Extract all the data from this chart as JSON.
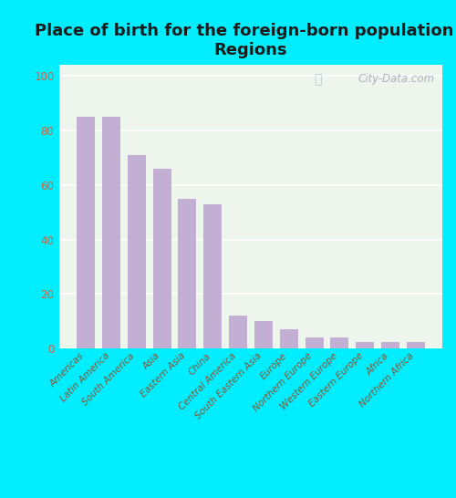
{
  "title": "Place of birth for the foreign-born population -\nRegions",
  "categories": [
    "Americas",
    "Latin America",
    "South America",
    "Asia",
    "Eastern Asia",
    "China",
    "Central America",
    "South Eastern Asia",
    "Europe",
    "Northern Europe",
    "Western Europe",
    "Eastern Europe",
    "Africa",
    "Northern Africa"
  ],
  "values": [
    85,
    85,
    71,
    66,
    55,
    53,
    12,
    10,
    7,
    4,
    4,
    2.5,
    2.5,
    2.5
  ],
  "bar_color": "#c4afd4",
  "background_outer": "#00eeff",
  "background_inner": "#eef5ec",
  "grid_color": "#ffffff",
  "yticks": [
    0,
    20,
    40,
    60,
    80,
    100
  ],
  "ylim": [
    0,
    104
  ],
  "title_fontsize": 13,
  "tick_label_fontsize": 7.5,
  "ytick_color": "#cc6644",
  "xtick_color": "#885533",
  "title_color": "#1a1a1a",
  "watermark_text": "City-Data.com"
}
